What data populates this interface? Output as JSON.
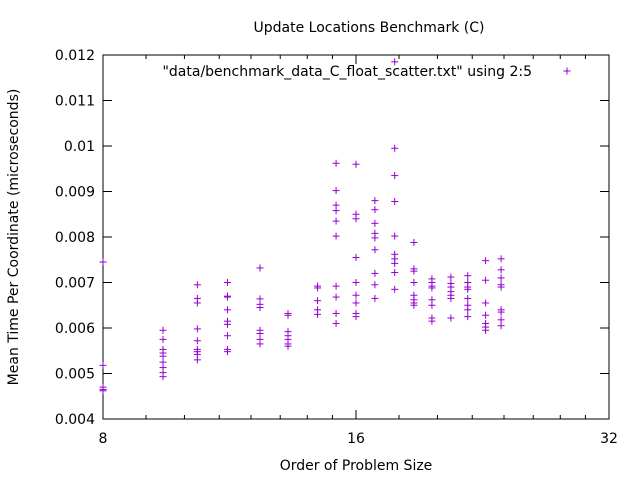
{
  "chart_data": {
    "type": "scatter",
    "title": "Update Locations Benchmark (C)",
    "xlabel": "Order of Problem Size",
    "ylabel": "Mean Time Per Coordinate (microseconds)",
    "x_scale": "log2",
    "xlim": [
      8,
      32
    ],
    "ylim": [
      0.004,
      0.012
    ],
    "x_ticks": [
      8,
      16,
      32
    ],
    "x_tick_labels": [
      "8",
      "16",
      "32"
    ],
    "y_ticks": [
      0.004,
      0.005,
      0.006,
      0.007,
      0.008,
      0.009,
      0.01,
      0.011,
      0.012
    ],
    "y_tick_labels": [
      "0.004",
      "0.005",
      "0.006",
      "0.007",
      "0.008",
      "0.009",
      "0.01",
      "0.011",
      "0.012"
    ],
    "grid": false,
    "legend_position": "top-right",
    "marker_color": "#9400d3",
    "series": [
      {
        "name": "\"data/benchmark_data_C_float_scatter.txt\" using 2:5",
        "points": [
          [
            8,
            0.00745
          ],
          [
            8,
            0.00518
          ],
          [
            8,
            0.0047
          ],
          [
            8,
            0.00465
          ],
          [
            8,
            0.00462
          ],
          [
            9.43,
            0.00595
          ],
          [
            9.43,
            0.00575
          ],
          [
            9.43,
            0.00553
          ],
          [
            9.43,
            0.00545
          ],
          [
            9.43,
            0.00538
          ],
          [
            9.43,
            0.00525
          ],
          [
            9.43,
            0.00513
          ],
          [
            9.43,
            0.00502
          ],
          [
            9.43,
            0.00493
          ],
          [
            10.36,
            0.00695
          ],
          [
            10.36,
            0.00665
          ],
          [
            10.36,
            0.00655
          ],
          [
            10.36,
            0.00598
          ],
          [
            10.36,
            0.00572
          ],
          [
            10.36,
            0.00553
          ],
          [
            10.36,
            0.00548
          ],
          [
            10.36,
            0.00542
          ],
          [
            10.36,
            0.0053
          ],
          [
            11.25,
            0.007
          ],
          [
            11.25,
            0.0067
          ],
          [
            11.25,
            0.00668
          ],
          [
            11.25,
            0.0064
          ],
          [
            11.25,
            0.00615
          ],
          [
            11.25,
            0.00608
          ],
          [
            11.25,
            0.00583
          ],
          [
            11.25,
            0.00553
          ],
          [
            11.25,
            0.00548
          ],
          [
            12.3,
            0.00732
          ],
          [
            12.3,
            0.00664
          ],
          [
            12.3,
            0.00652
          ],
          [
            12.3,
            0.00645
          ],
          [
            12.3,
            0.00595
          ],
          [
            12.3,
            0.00588
          ],
          [
            12.3,
            0.00575
          ],
          [
            12.3,
            0.00565
          ],
          [
            13.28,
            0.00632
          ],
          [
            13.28,
            0.00628
          ],
          [
            13.28,
            0.00592
          ],
          [
            13.28,
            0.00583
          ],
          [
            13.28,
            0.00575
          ],
          [
            13.28,
            0.00565
          ],
          [
            13.28,
            0.0056
          ],
          [
            14.4,
            0.00692
          ],
          [
            14.4,
            0.00688
          ],
          [
            14.4,
            0.0066
          ],
          [
            14.4,
            0.0064
          ],
          [
            14.4,
            0.0063
          ],
          [
            15.15,
            0.00962
          ],
          [
            15.15,
            0.00902
          ],
          [
            15.15,
            0.0087
          ],
          [
            15.15,
            0.00858
          ],
          [
            15.15,
            0.00835
          ],
          [
            15.15,
            0.00802
          ],
          [
            15.15,
            0.00692
          ],
          [
            15.15,
            0.00668
          ],
          [
            15.15,
            0.00632
          ],
          [
            15.15,
            0.0061
          ],
          [
            16,
            0.0096
          ],
          [
            16,
            0.0085
          ],
          [
            16,
            0.0084
          ],
          [
            16,
            0.00755
          ],
          [
            16,
            0.007
          ],
          [
            16,
            0.00672
          ],
          [
            16,
            0.00655
          ],
          [
            16,
            0.00632
          ],
          [
            16,
            0.00625
          ],
          [
            16.85,
            0.0088
          ],
          [
            16.85,
            0.0086
          ],
          [
            16.85,
            0.0083
          ],
          [
            16.85,
            0.00808
          ],
          [
            16.85,
            0.00798
          ],
          [
            16.85,
            0.00772
          ],
          [
            16.85,
            0.0072
          ],
          [
            16.85,
            0.00695
          ],
          [
            16.85,
            0.00665
          ],
          [
            17.79,
            0.01185
          ],
          [
            17.79,
            0.00995
          ],
          [
            17.79,
            0.00935
          ],
          [
            17.79,
            0.00878
          ],
          [
            17.79,
            0.00802
          ],
          [
            17.79,
            0.00762
          ],
          [
            17.79,
            0.00752
          ],
          [
            17.79,
            0.00742
          ],
          [
            17.79,
            0.00722
          ],
          [
            17.79,
            0.00685
          ],
          [
            18.75,
            0.00788
          ],
          [
            18.75,
            0.0073
          ],
          [
            18.75,
            0.00725
          ],
          [
            18.75,
            0.007
          ],
          [
            18.75,
            0.00672
          ],
          [
            18.75,
            0.00662
          ],
          [
            18.75,
            0.00655
          ],
          [
            18.75,
            0.0065
          ],
          [
            19.7,
            0.00708
          ],
          [
            19.7,
            0.007
          ],
          [
            19.7,
            0.00692
          ],
          [
            19.7,
            0.00688
          ],
          [
            19.7,
            0.00662
          ],
          [
            19.7,
            0.0065
          ],
          [
            19.7,
            0.00622
          ],
          [
            19.7,
            0.00615
          ],
          [
            20.75,
            0.00712
          ],
          [
            20.75,
            0.00698
          ],
          [
            20.75,
            0.0069
          ],
          [
            20.75,
            0.0068
          ],
          [
            20.75,
            0.00672
          ],
          [
            20.75,
            0.00665
          ],
          [
            20.75,
            0.00622
          ],
          [
            21.73,
            0.00715
          ],
          [
            21.73,
            0.007
          ],
          [
            21.73,
            0.0069
          ],
          [
            21.73,
            0.00685
          ],
          [
            21.73,
            0.00665
          ],
          [
            21.73,
            0.0065
          ],
          [
            21.73,
            0.0064
          ],
          [
            21.73,
            0.00625
          ],
          [
            22.82,
            0.00748
          ],
          [
            22.82,
            0.00705
          ],
          [
            22.82,
            0.00655
          ],
          [
            22.82,
            0.00628
          ],
          [
            22.82,
            0.0061
          ],
          [
            22.82,
            0.00602
          ],
          [
            22.82,
            0.00595
          ],
          [
            23.81,
            0.00752
          ],
          [
            23.81,
            0.00728
          ],
          [
            23.81,
            0.0071
          ],
          [
            23.81,
            0.00695
          ],
          [
            23.81,
            0.0069
          ],
          [
            23.81,
            0.0064
          ],
          [
            23.81,
            0.00635
          ],
          [
            23.81,
            0.00618
          ],
          [
            23.81,
            0.00605
          ]
        ]
      }
    ]
  }
}
